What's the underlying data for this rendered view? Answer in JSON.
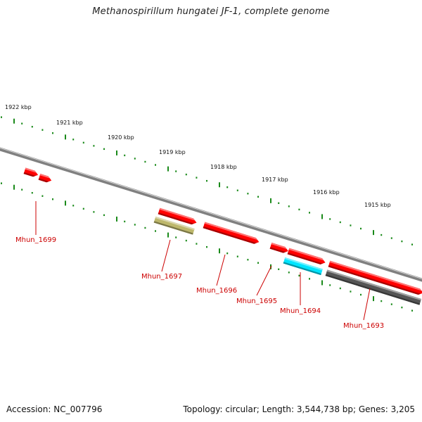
{
  "title": "Methanospirillum hungatei JF-1, complete genome",
  "footer": {
    "accession": "Accession: NC_007796",
    "summary": "Topology: circular; Length: 3,544,738 bp; Genes: 3,205"
  },
  "scale_labels": [
    "1922 kbp",
    "1921 kbp",
    "1920 kbp",
    "1919 kbp",
    "1918 kbp",
    "1917 kbp",
    "1916 kbp",
    "1915 kbp"
  ],
  "genes": [
    {
      "label": "Mhun_1699",
      "color": "#ff0000"
    },
    {
      "label": "Mhun_1697",
      "color": "#bdb76b"
    },
    {
      "label": "Mhun_1696",
      "color": "#ff0000"
    },
    {
      "label": "Mhun_1695",
      "color": "#ff0000"
    },
    {
      "label": "Mhun_1694",
      "color": "#00e5ff"
    },
    {
      "label": "Mhun_1693",
      "color": "#ff0000"
    }
  ],
  "colors": {
    "backbone": "#808080",
    "tick": "#1a8a1a",
    "label": "#cc0000",
    "gray_feature": "#555555"
  }
}
